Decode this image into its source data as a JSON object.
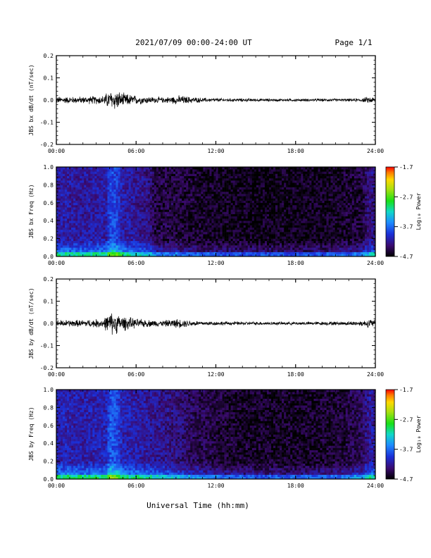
{
  "header": {
    "title": "2021/07/09  00:00-24:00 UT",
    "page": "Page 1/1"
  },
  "xlabel": "Universal Time (hh:mm)",
  "time_ticks": [
    "00:00",
    "06:00",
    "12:00",
    "18:00",
    "24:00"
  ],
  "chart_data": [
    {
      "type": "line",
      "ylabel": "JBS bx dB/dt (nT/sec)",
      "ylim": [
        -0.2,
        0.2
      ],
      "xlim_hours": [
        0,
        24
      ],
      "yticks": [
        -0.2,
        -0.1,
        0.0,
        0.1,
        0.2
      ],
      "ytick_labels": [
        "-0.2",
        "-0.1",
        "0.0",
        "0.1",
        "0.2"
      ],
      "amplitude_envelope": {
        "hours": [
          0,
          2,
          3.5,
          4,
          4.4,
          5,
          6,
          7,
          8,
          9,
          9.3,
          10,
          11,
          12,
          14,
          16,
          18,
          20,
          22,
          23,
          23.5,
          24
        ],
        "amplitude": [
          0.015,
          0.015,
          0.02,
          0.04,
          0.045,
          0.03,
          0.02,
          0.015,
          0.012,
          0.018,
          0.02,
          0.015,
          0.01,
          0.008,
          0.007,
          0.006,
          0.006,
          0.006,
          0.006,
          0.008,
          0.015,
          0.012
        ]
      }
    },
    {
      "type": "heatmap",
      "ylabel": "JBS bx Freq (Hz)",
      "ylim": [
        0.0,
        1.0
      ],
      "yticks": [
        0.0,
        0.2,
        0.4,
        0.6,
        0.8,
        1.0
      ],
      "ytick_labels": [
        "0.0",
        "0.2",
        "0.4",
        "0.6",
        "0.8",
        "1.0"
      ],
      "colorbar": {
        "label": "Log₁₀ Power",
        "range": [
          -4.7,
          -1.7
        ],
        "ticks": [
          "-1.7",
          "-2.7",
          "-3.7",
          "-4.7"
        ]
      },
      "activity_profile": {
        "hours": [
          0,
          2,
          3.8,
          4,
          4.5,
          5,
          6,
          7,
          7.5,
          9,
          10,
          12,
          15,
          18,
          21,
          23,
          23.7,
          24
        ],
        "level": [
          0.55,
          0.5,
          0.55,
          0.85,
          0.8,
          0.55,
          0.5,
          0.4,
          0.2,
          0.2,
          0.15,
          0.1,
          0.08,
          0.08,
          0.1,
          0.2,
          0.45,
          0.35
        ]
      }
    },
    {
      "type": "line",
      "ylabel": "JBS by dB/dt (nT/sec)",
      "ylim": [
        -0.2,
        0.2
      ],
      "xlim_hours": [
        0,
        24
      ],
      "yticks": [
        -0.2,
        -0.1,
        0.0,
        0.1,
        0.2
      ],
      "ytick_labels": [
        "-0.2",
        "-0.1",
        "0.0",
        "0.1",
        "0.2"
      ],
      "amplitude_envelope": {
        "hours": [
          0,
          2,
          3.5,
          4,
          4.3,
          4.8,
          6,
          7,
          8,
          9,
          9.5,
          10,
          11,
          12,
          14,
          16,
          18,
          20,
          22,
          23,
          23.6,
          24
        ],
        "amplitude": [
          0.015,
          0.015,
          0.02,
          0.045,
          0.05,
          0.035,
          0.02,
          0.015,
          0.013,
          0.02,
          0.018,
          0.014,
          0.01,
          0.009,
          0.008,
          0.007,
          0.007,
          0.008,
          0.009,
          0.012,
          0.02,
          0.015
        ]
      }
    },
    {
      "type": "heatmap",
      "ylabel": "JBS by Freq (Hz)",
      "ylim": [
        0.0,
        1.0
      ],
      "yticks": [
        0.0,
        0.2,
        0.4,
        0.6,
        0.8,
        1.0
      ],
      "ytick_labels": [
        "0.0",
        "0.2",
        "0.4",
        "0.6",
        "0.8",
        "1.0"
      ],
      "colorbar": {
        "label": "Log₁₀ Power",
        "range": [
          -4.7,
          -1.7
        ],
        "ticks": [
          "-1.7",
          "-2.7",
          "-3.7",
          "-4.7"
        ]
      },
      "activity_profile": {
        "hours": [
          0,
          2,
          3.8,
          4,
          4.5,
          5,
          6,
          7,
          8,
          9,
          10,
          12,
          13,
          15,
          18,
          21,
          23,
          23.7,
          24
        ],
        "level": [
          0.6,
          0.55,
          0.6,
          0.9,
          0.85,
          0.6,
          0.55,
          0.5,
          0.45,
          0.4,
          0.3,
          0.2,
          0.15,
          0.12,
          0.12,
          0.15,
          0.3,
          0.55,
          0.45
        ]
      }
    }
  ]
}
